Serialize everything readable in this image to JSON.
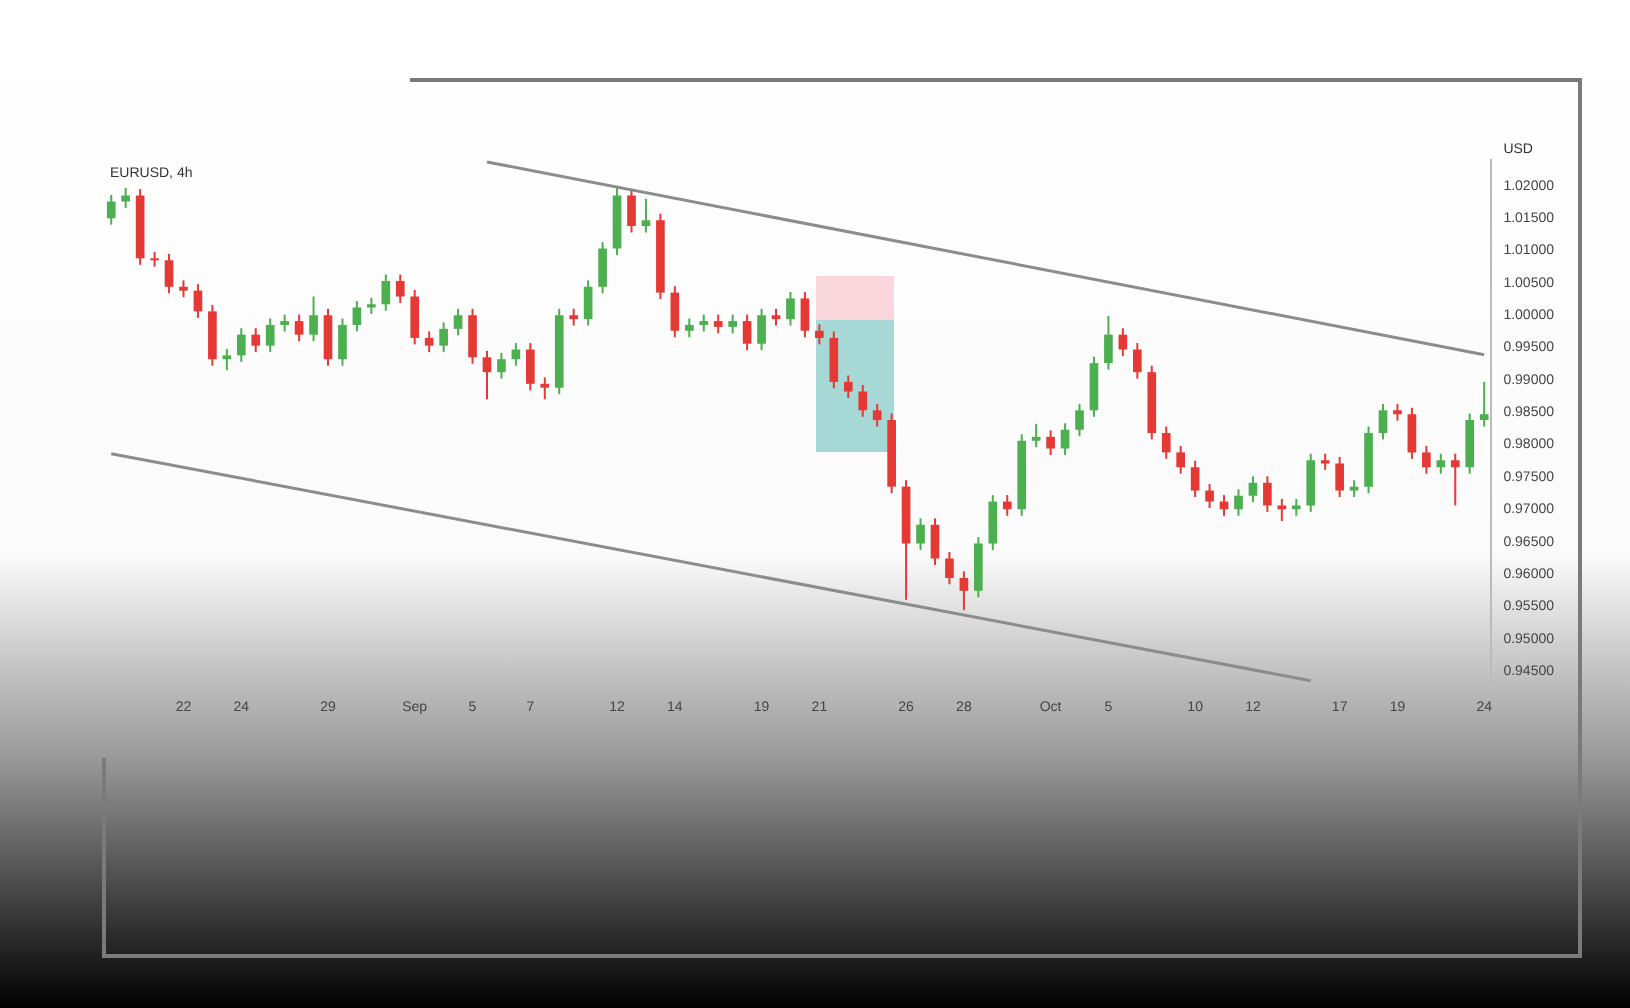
{
  "chart_data": {
    "type": "candlestick",
    "title": "EURUSD, 4h",
    "ylabel": "USD",
    "categories": [
      null,
      null,
      null,
      null,
      null,
      "22",
      null,
      null,
      null,
      "24",
      null,
      null,
      null,
      null,
      null,
      "29",
      null,
      null,
      null,
      null,
      null,
      "Sep",
      null,
      null,
      null,
      "5",
      null,
      null,
      null,
      "7",
      null,
      null,
      null,
      null,
      null,
      "12",
      null,
      null,
      null,
      "14",
      null,
      null,
      null,
      null,
      null,
      "19",
      null,
      null,
      null,
      "21",
      null,
      null,
      null,
      null,
      null,
      "26",
      null,
      null,
      null,
      "28",
      null,
      null,
      null,
      null,
      null,
      "Oct",
      null,
      null,
      null,
      "5",
      null,
      null,
      null,
      null,
      null,
      "10",
      null,
      null,
      null,
      "12",
      null,
      null,
      null,
      null,
      null,
      "17",
      null,
      null,
      null,
      "19",
      null,
      null,
      null,
      null,
      null,
      "24"
    ],
    "ohlc": [
      [
        1.015,
        1.0186,
        1.014,
        1.0176
      ],
      [
        1.0176,
        1.0197,
        1.0166,
        1.0185
      ],
      [
        1.0185,
        1.0195,
        1.0078,
        1.0088
      ],
      [
        1.0088,
        1.0098,
        1.0075,
        1.0085
      ],
      [
        1.0085,
        1.0095,
        1.0034,
        1.0044
      ],
      [
        1.0044,
        1.0054,
        1.0028,
        1.0038
      ],
      [
        1.0038,
        1.0048,
        0.9996,
        1.0006
      ],
      [
        1.0006,
        1.0016,
        0.9922,
        0.9932
      ],
      [
        0.9932,
        0.9948,
        0.9915,
        0.9938
      ],
      [
        0.9938,
        0.998,
        0.9928,
        0.997
      ],
      [
        0.997,
        0.998,
        0.9943,
        0.9953
      ],
      [
        0.9953,
        0.9995,
        0.9943,
        0.9985
      ],
      [
        0.9985,
        1.0001,
        0.9975,
        0.9991
      ],
      [
        0.9991,
        1.0001,
        0.996,
        0.997
      ],
      [
        0.997,
        1.0029,
        0.996,
        1.0
      ],
      [
        1.0,
        1.001,
        0.9922,
        0.9932
      ],
      [
        0.9932,
        0.9995,
        0.9922,
        0.9985
      ],
      [
        0.9985,
        1.0022,
        0.9975,
        1.0012
      ],
      [
        1.0012,
        1.0027,
        1.0002,
        1.0017
      ],
      [
        1.0017,
        1.0063,
        1.0007,
        1.0053
      ],
      [
        1.0053,
        1.0063,
        1.0019,
        1.0029
      ],
      [
        1.0029,
        1.0039,
        0.9955,
        0.9965
      ],
      [
        0.9965,
        0.9975,
        0.9943,
        0.9953
      ],
      [
        0.9953,
        0.9989,
        0.9943,
        0.9979
      ],
      [
        0.9979,
        1.001,
        0.9969,
        1.0
      ],
      [
        1.0,
        1.001,
        0.9925,
        0.9935
      ],
      [
        0.9935,
        0.9945,
        0.987,
        0.9912
      ],
      [
        0.9912,
        0.9942,
        0.9902,
        0.9932
      ],
      [
        0.9932,
        0.9957,
        0.9922,
        0.9947
      ],
      [
        0.9947,
        0.9957,
        0.9884,
        0.9894
      ],
      [
        0.9894,
        0.9904,
        0.987,
        0.9888
      ],
      [
        0.9888,
        1.001,
        0.9878,
        1.0
      ],
      [
        1.0,
        1.001,
        0.9984,
        0.9994
      ],
      [
        0.9994,
        1.0054,
        0.9984,
        1.0044
      ],
      [
        1.0044,
        1.0113,
        1.0034,
        1.0103
      ],
      [
        1.0103,
        1.0198,
        1.0093,
        1.0185
      ],
      [
        1.0185,
        1.0195,
        1.0128,
        1.0138
      ],
      [
        1.0138,
        1.018,
        1.0128,
        1.0147
      ],
      [
        1.0147,
        1.0157,
        1.0025,
        1.0035
      ],
      [
        1.0035,
        1.0045,
        0.9966,
        0.9976
      ],
      [
        0.9976,
        0.9995,
        0.9966,
        0.9985
      ],
      [
        0.9985,
        1.0001,
        0.9975,
        0.9991
      ],
      [
        0.9991,
        1.0001,
        0.9972,
        0.9982
      ],
      [
        0.9982,
        1.0001,
        0.9972,
        0.9991
      ],
      [
        0.9991,
        1.0001,
        0.9946,
        0.9956
      ],
      [
        0.9956,
        1.001,
        0.9946,
        1.0
      ],
      [
        1.0,
        1.001,
        0.9984,
        0.9994
      ],
      [
        0.9994,
        1.0036,
        0.9984,
        1.0026
      ],
      [
        1.0026,
        1.0036,
        0.9966,
        0.9976
      ],
      [
        0.9976,
        0.9986,
        0.9955,
        0.9965
      ],
      [
        0.9965,
        0.9975,
        0.9887,
        0.9897
      ],
      [
        0.9897,
        0.9907,
        0.9872,
        0.9882
      ],
      [
        0.9882,
        0.9892,
        0.9843,
        0.9853
      ],
      [
        0.9853,
        0.9863,
        0.9828,
        0.9838
      ],
      [
        0.9838,
        0.9848,
        0.9725,
        0.9735
      ],
      [
        0.9735,
        0.9745,
        0.956,
        0.9647
      ],
      [
        0.9647,
        0.9686,
        0.9637,
        0.9676
      ],
      [
        0.9676,
        0.9686,
        0.9614,
        0.9624
      ],
      [
        0.9624,
        0.9634,
        0.9584,
        0.9594
      ],
      [
        0.9594,
        0.9604,
        0.9544,
        0.9574
      ],
      [
        0.9574,
        0.9657,
        0.9564,
        0.9647
      ],
      [
        0.9647,
        0.9722,
        0.9637,
        0.9712
      ],
      [
        0.9712,
        0.9722,
        0.969,
        0.97
      ],
      [
        0.97,
        0.9816,
        0.969,
        0.9806
      ],
      [
        0.9806,
        0.9832,
        0.9796,
        0.9812
      ],
      [
        0.9812,
        0.9822,
        0.9784,
        0.9794
      ],
      [
        0.9794,
        0.9833,
        0.9784,
        0.9823
      ],
      [
        0.9823,
        0.9863,
        0.9813,
        0.9853
      ],
      [
        0.9853,
        0.9936,
        0.9843,
        0.9926
      ],
      [
        0.9926,
        0.9999,
        0.9916,
        0.997
      ],
      [
        0.997,
        0.998,
        0.9937,
        0.9947
      ],
      [
        0.9947,
        0.9957,
        0.9902,
        0.9912
      ],
      [
        0.9912,
        0.9922,
        0.9808,
        0.9818
      ],
      [
        0.9818,
        0.9828,
        0.9778,
        0.9788
      ],
      [
        0.9788,
        0.9798,
        0.9755,
        0.9765
      ],
      [
        0.9765,
        0.9775,
        0.9719,
        0.9729
      ],
      [
        0.9729,
        0.9739,
        0.9702,
        0.9712
      ],
      [
        0.9712,
        0.9722,
        0.969,
        0.97
      ],
      [
        0.97,
        0.9731,
        0.969,
        0.9721
      ],
      [
        0.9721,
        0.9751,
        0.9711,
        0.9741
      ],
      [
        0.9741,
        0.9751,
        0.9696,
        0.9706
      ],
      [
        0.9706,
        0.9716,
        0.9682,
        0.97
      ],
      [
        0.97,
        0.9716,
        0.969,
        0.9706
      ],
      [
        0.9706,
        0.9786,
        0.9696,
        0.9776
      ],
      [
        0.9776,
        0.9786,
        0.9761,
        0.9771
      ],
      [
        0.9771,
        0.9781,
        0.9719,
        0.9729
      ],
      [
        0.9729,
        0.9745,
        0.9719,
        0.9735
      ],
      [
        0.9735,
        0.9828,
        0.9725,
        0.9818
      ],
      [
        0.9818,
        0.9863,
        0.9808,
        0.9853
      ],
      [
        0.9853,
        0.9863,
        0.9837,
        0.9847
      ],
      [
        0.9847,
        0.9857,
        0.9778,
        0.9788
      ],
      [
        0.9788,
        0.9798,
        0.9755,
        0.9765
      ],
      [
        0.9765,
        0.9786,
        0.9755,
        0.9776
      ],
      [
        0.9776,
        0.9786,
        0.9706,
        0.9765
      ],
      [
        0.9765,
        0.9848,
        0.9755,
        0.9838
      ],
      [
        0.9838,
        0.9897,
        0.9828,
        0.9847
      ]
    ],
    "colors": [
      "#4caf50",
      "#4caf50",
      "#e53935",
      "#e53935",
      "#e53935",
      "#e53935",
      "#e53935",
      "#e53935",
      "#4caf50",
      "#4caf50",
      "#e53935",
      "#4caf50",
      "#4caf50",
      "#e53935",
      "#4caf50",
      "#e53935",
      "#4caf50",
      "#4caf50",
      "#4caf50",
      "#4caf50",
      "#e53935",
      "#e53935",
      "#e53935",
      "#4caf50",
      "#4caf50",
      "#e53935",
      "#e53935",
      "#4caf50",
      "#4caf50",
      "#e53935",
      "#e53935",
      "#4caf50",
      "#e53935",
      "#4caf50",
      "#4caf50",
      "#4caf50",
      "#e53935",
      "#4caf50",
      "#e53935",
      "#e53935",
      "#4caf50",
      "#4caf50",
      "#e53935",
      "#4caf50",
      "#e53935",
      "#4caf50",
      "#e53935",
      "#4caf50",
      "#e53935",
      "#e53935",
      "#e53935",
      "#e53935",
      "#e53935",
      "#e53935",
      "#e53935",
      "#e53935",
      "#4caf50",
      "#e53935",
      "#e53935",
      "#e53935",
      "#4caf50",
      "#4caf50",
      "#e53935",
      "#4caf50",
      "#4caf50",
      "#e53935",
      "#4caf50",
      "#4caf50",
      "#4caf50",
      "#4caf50",
      "#e53935",
      "#e53935",
      "#e53935",
      "#e53935",
      "#e53935",
      "#e53935",
      "#e53935",
      "#e53935",
      "#4caf50",
      "#4caf50",
      "#e53935",
      "#e53935",
      "#4caf50",
      "#4caf50",
      "#e53935",
      "#e53935",
      "#4caf50",
      "#4caf50",
      "#4caf50",
      "#e53935",
      "#e53935",
      "#e53935",
      "#4caf50",
      "#e53935",
      "#4caf50",
      "#4caf50"
    ],
    "series": [
      {
        "type": "line",
        "color": "#8c8c8c",
        "values": [
          null,
          null,
          null,
          null,
          null,
          null,
          null,
          null,
          null,
          null,
          null,
          null,
          null,
          null,
          null,
          null,
          null,
          null,
          null,
          null,
          null,
          null,
          null,
          null,
          null,
          null,
          1.0237,
          null,
          null,
          null,
          null,
          null,
          null,
          null,
          null,
          null,
          null,
          null,
          null,
          null,
          null,
          null,
          null,
          null,
          null,
          null,
          null,
          null,
          null,
          null,
          null,
          null,
          null,
          null,
          null,
          null,
          null,
          null,
          null,
          null,
          null,
          null,
          null,
          null,
          null,
          null,
          null,
          null,
          null,
          null,
          null,
          null,
          null,
          null,
          null,
          null,
          null,
          null,
          null,
          null,
          null,
          null,
          null,
          null,
          null,
          null,
          null,
          null,
          null,
          null,
          null,
          null,
          null,
          null,
          null,
          0.9939
        ]
      },
      {
        "type": "line",
        "color": "#8c8c8c",
        "values": [
          0.9786,
          null,
          null,
          null,
          null,
          null,
          null,
          null,
          null,
          null,
          null,
          null,
          null,
          null,
          null,
          null,
          null,
          null,
          null,
          null,
          null,
          null,
          null,
          null,
          null,
          null,
          null,
          null,
          null,
          null,
          null,
          null,
          null,
          null,
          null,
          null,
          null,
          null,
          null,
          null,
          null,
          null,
          null,
          null,
          null,
          null,
          null,
          null,
          null,
          null,
          null,
          null,
          null,
          null,
          null,
          null,
          null,
          null,
          null,
          null,
          null,
          null,
          null,
          null,
          null,
          null,
          null,
          null,
          null,
          null,
          null,
          null,
          null,
          null,
          null,
          null,
          null,
          null,
          null,
          null,
          null,
          null,
          null,
          0.9435,
          null,
          null,
          null,
          null,
          null,
          null,
          null,
          null,
          null,
          null,
          null,
          null
        ]
      }
    ],
    "ylim": [
      0.9425,
      1.024
    ],
    "yticks": [
      {
        "value": 0.945,
        "label": "0.94500"
      },
      {
        "value": 0.95,
        "label": "0.95000"
      },
      {
        "value": 0.955,
        "label": "0.95500"
      },
      {
        "value": 0.96,
        "label": "0.96000"
      },
      {
        "value": 0.965,
        "label": "0.96500"
      },
      {
        "value": 0.97,
        "label": "0.97000"
      },
      {
        "value": 0.975,
        "label": "0.97500"
      },
      {
        "value": 0.98,
        "label": "0.98000"
      },
      {
        "value": 0.985,
        "label": "0.98500"
      },
      {
        "value": 0.99,
        "label": "0.99000"
      },
      {
        "value": 0.995,
        "label": "0.99500"
      },
      {
        "value": 1.0,
        "label": "1.00000"
      },
      {
        "value": 1.005,
        "label": "1.00500"
      },
      {
        "value": 1.01,
        "label": "1.01000"
      },
      {
        "value": 1.015,
        "label": "1.01500"
      },
      {
        "value": 1.02,
        "label": "1.02000"
      }
    ],
    "grid": false,
    "legend": false
  }
}
